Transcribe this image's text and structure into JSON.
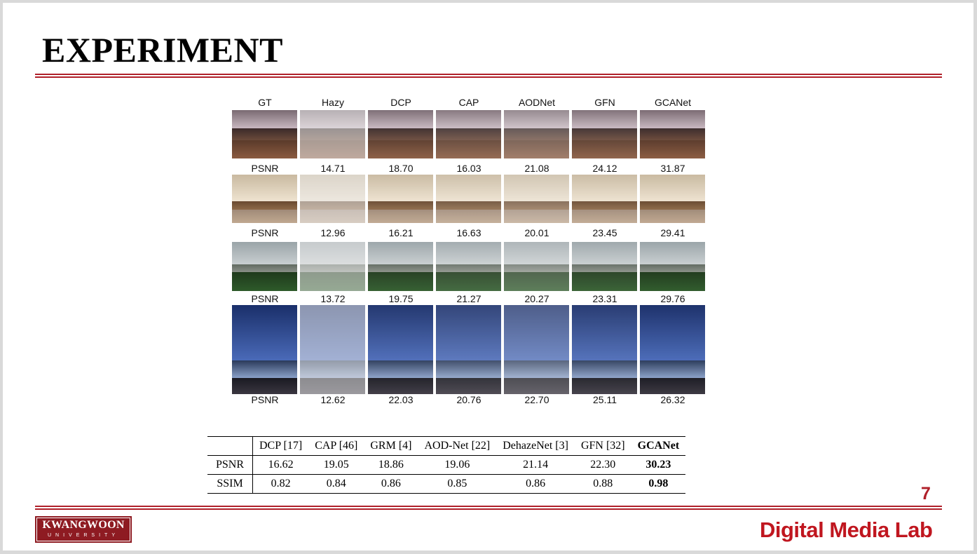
{
  "slide": {
    "title": "EXPERIMENT",
    "page_number": "7",
    "footer_lab": "Digital Media Lab",
    "logo": {
      "line1": "KWANGWOON",
      "line2": "UNIVERSITY"
    },
    "accent_color": "#b0202a"
  },
  "figure": {
    "columns": [
      "GT",
      "Hazy",
      "DCP",
      "CAP",
      "AODNet",
      "GFN",
      "GCANet"
    ],
    "rows": [
      {
        "scene": "dining-room",
        "label": "PSNR",
        "values": [
          "14.71",
          "18.70",
          "16.03",
          "21.08",
          "24.12",
          "31.87"
        ]
      },
      {
        "scene": "patio-room",
        "label": "PSNR",
        "values": [
          "12.96",
          "16.21",
          "16.63",
          "20.01",
          "23.45",
          "29.41"
        ]
      },
      {
        "scene": "city-buildings",
        "label": "PSNR",
        "values": [
          "13.72",
          "19.75",
          "21.27",
          "20.27",
          "23.31",
          "29.76"
        ]
      },
      {
        "scene": "cctv-tower-street",
        "label": "PSNR",
        "values": [
          "12.62",
          "22.03",
          "20.76",
          "22.70",
          "25.11",
          "26.32"
        ]
      }
    ]
  },
  "results_table": {
    "headers": [
      "",
      "DCP [17]",
      "CAP [46]",
      "GRM [4]",
      "AOD-Net [22]",
      "DehazeNet [3]",
      "GFN [32]",
      "GCANet"
    ],
    "rows": [
      {
        "metric": "PSNR",
        "values": [
          "16.62",
          "19.05",
          "18.86",
          "19.06",
          "21.14",
          "22.30",
          "30.23"
        ]
      },
      {
        "metric": "SSIM",
        "values": [
          "0.82",
          "0.84",
          "0.86",
          "0.85",
          "0.86",
          "0.88",
          "0.98"
        ]
      }
    ]
  }
}
